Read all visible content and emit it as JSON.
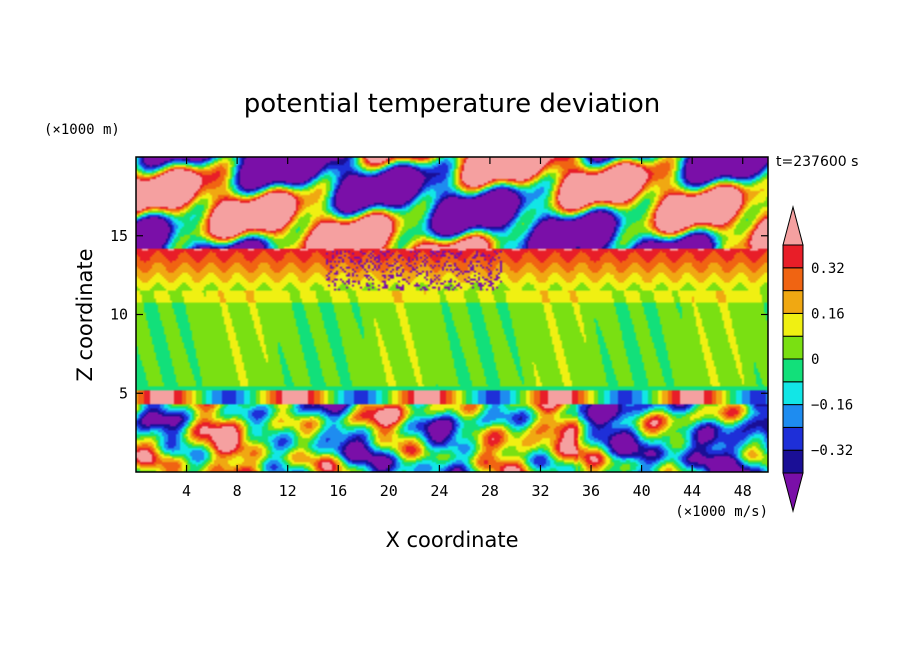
{
  "chart_data": {
    "type": "heatmap",
    "title": "potential temperature deviation",
    "xlabel": "X coordinate",
    "ylabel": "Z coordinate",
    "x_unit": "(×1000 m/s)",
    "y_unit": "(×1000 m)",
    "time_label": "t=237600 s",
    "xlim": [
      0,
      50
    ],
    "ylim": [
      0,
      20
    ],
    "x_ticks": [
      4,
      8,
      12,
      16,
      20,
      24,
      28,
      32,
      36,
      40,
      44,
      48
    ],
    "x_tick_labels": [
      "4",
      "8",
      "12",
      "16",
      "20",
      "24",
      "28",
      "32",
      "36",
      "40",
      "44",
      "48"
    ],
    "y_ticks": [
      5,
      10,
      15
    ],
    "y_tick_labels": [
      "5",
      "10",
      "15"
    ],
    "colorbar": {
      "levels": [
        -0.4,
        -0.32,
        -0.24,
        -0.16,
        -0.08,
        0,
        0.08,
        0.16,
        0.24,
        0.32,
        0.4
      ],
      "label_values": [
        0.32,
        0.16,
        0,
        -0.16,
        -0.32
      ],
      "labels": [
        "0.32",
        "0.16",
        "0",
        "−0.16",
        "−0.32"
      ],
      "colors": [
        "#7a0fa8",
        "#1a0f96",
        "#1e2fd8",
        "#1e8cf0",
        "#12e6e6",
        "#12e07a",
        "#7ae012",
        "#f0f012",
        "#f0a812",
        "#f06412",
        "#e81e28",
        "#f5a0a0"
      ]
    }
  }
}
